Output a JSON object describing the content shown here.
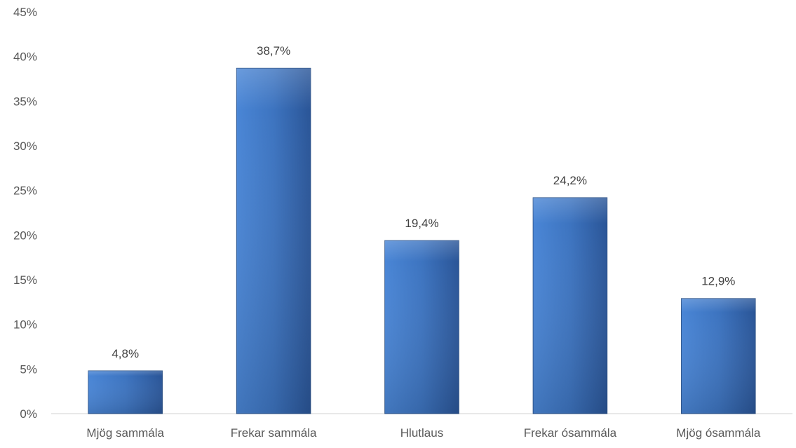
{
  "chart_data": {
    "type": "bar",
    "title": "",
    "xlabel": "",
    "ylabel": "",
    "categories": [
      "Mjög sammála",
      "Frekar sammála",
      "Hlutlaus",
      "Frekar ósammála",
      "Mjög ósammála"
    ],
    "values": [
      4.8,
      38.7,
      19.4,
      24.2,
      12.9
    ],
    "value_labels": [
      "4,8%",
      "38,7%",
      "19,4%",
      "24,2%",
      "12,9%"
    ],
    "ylim": [
      0,
      45
    ],
    "yticks": [
      0,
      5,
      10,
      15,
      20,
      25,
      30,
      35,
      40,
      45
    ],
    "ytick_labels": [
      "0%",
      "5%",
      "10%",
      "15%",
      "20%",
      "25%",
      "30%",
      "35%",
      "40%",
      "45%"
    ],
    "grid": false,
    "legend": "none",
    "colors": {
      "bar_top": "#4a86d6",
      "bar_mid": "#3d74c0",
      "bar_bottom": "#2a5597",
      "bar_stroke": "#23497f",
      "axis": "#d9d9d9",
      "text": "#595959",
      "label": "#404040"
    }
  }
}
